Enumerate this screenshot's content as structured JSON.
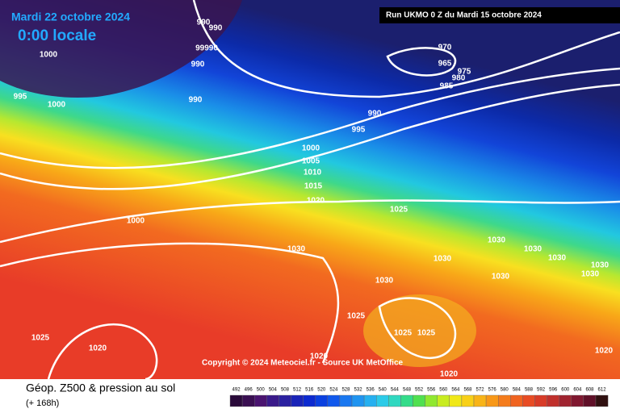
{
  "header": {
    "date": "Mardi 22 octobre 2024",
    "time": "0:00 locale",
    "run": "Run UKMO 0 Z du Mardi 15 octobre 2024"
  },
  "copyright": "Copyright © 2024 Meteociel.fr - Source UK MetOffice",
  "footer": {
    "title": "Géop. Z500 & pression au sol",
    "subtitle": "(+ 168h)"
  },
  "legend": {
    "levels": [
      492,
      496,
      500,
      504,
      508,
      512,
      516,
      520,
      524,
      528,
      532,
      536,
      540,
      544,
      548,
      552,
      556,
      560,
      564,
      568,
      572,
      576,
      580,
      584,
      588,
      592,
      596,
      600,
      604,
      608,
      612
    ]
  },
  "isobar_labels": [
    "990",
    "990",
    "99990",
    "990",
    "1000",
    "1000",
    "995",
    "990",
    "970",
    "965",
    "975",
    "980",
    "985",
    "990",
    "995",
    "1000",
    "1005",
    "1010",
    "1015",
    "1020",
    "1025",
    "1000",
    "1030",
    "1030",
    "1030",
    "1030",
    "1030",
    "1030",
    "1030",
    "1030",
    "1030",
    "1025",
    "1025",
    "1025",
    "1025",
    "1020",
    "1020",
    "1020",
    "1020"
  ]
}
